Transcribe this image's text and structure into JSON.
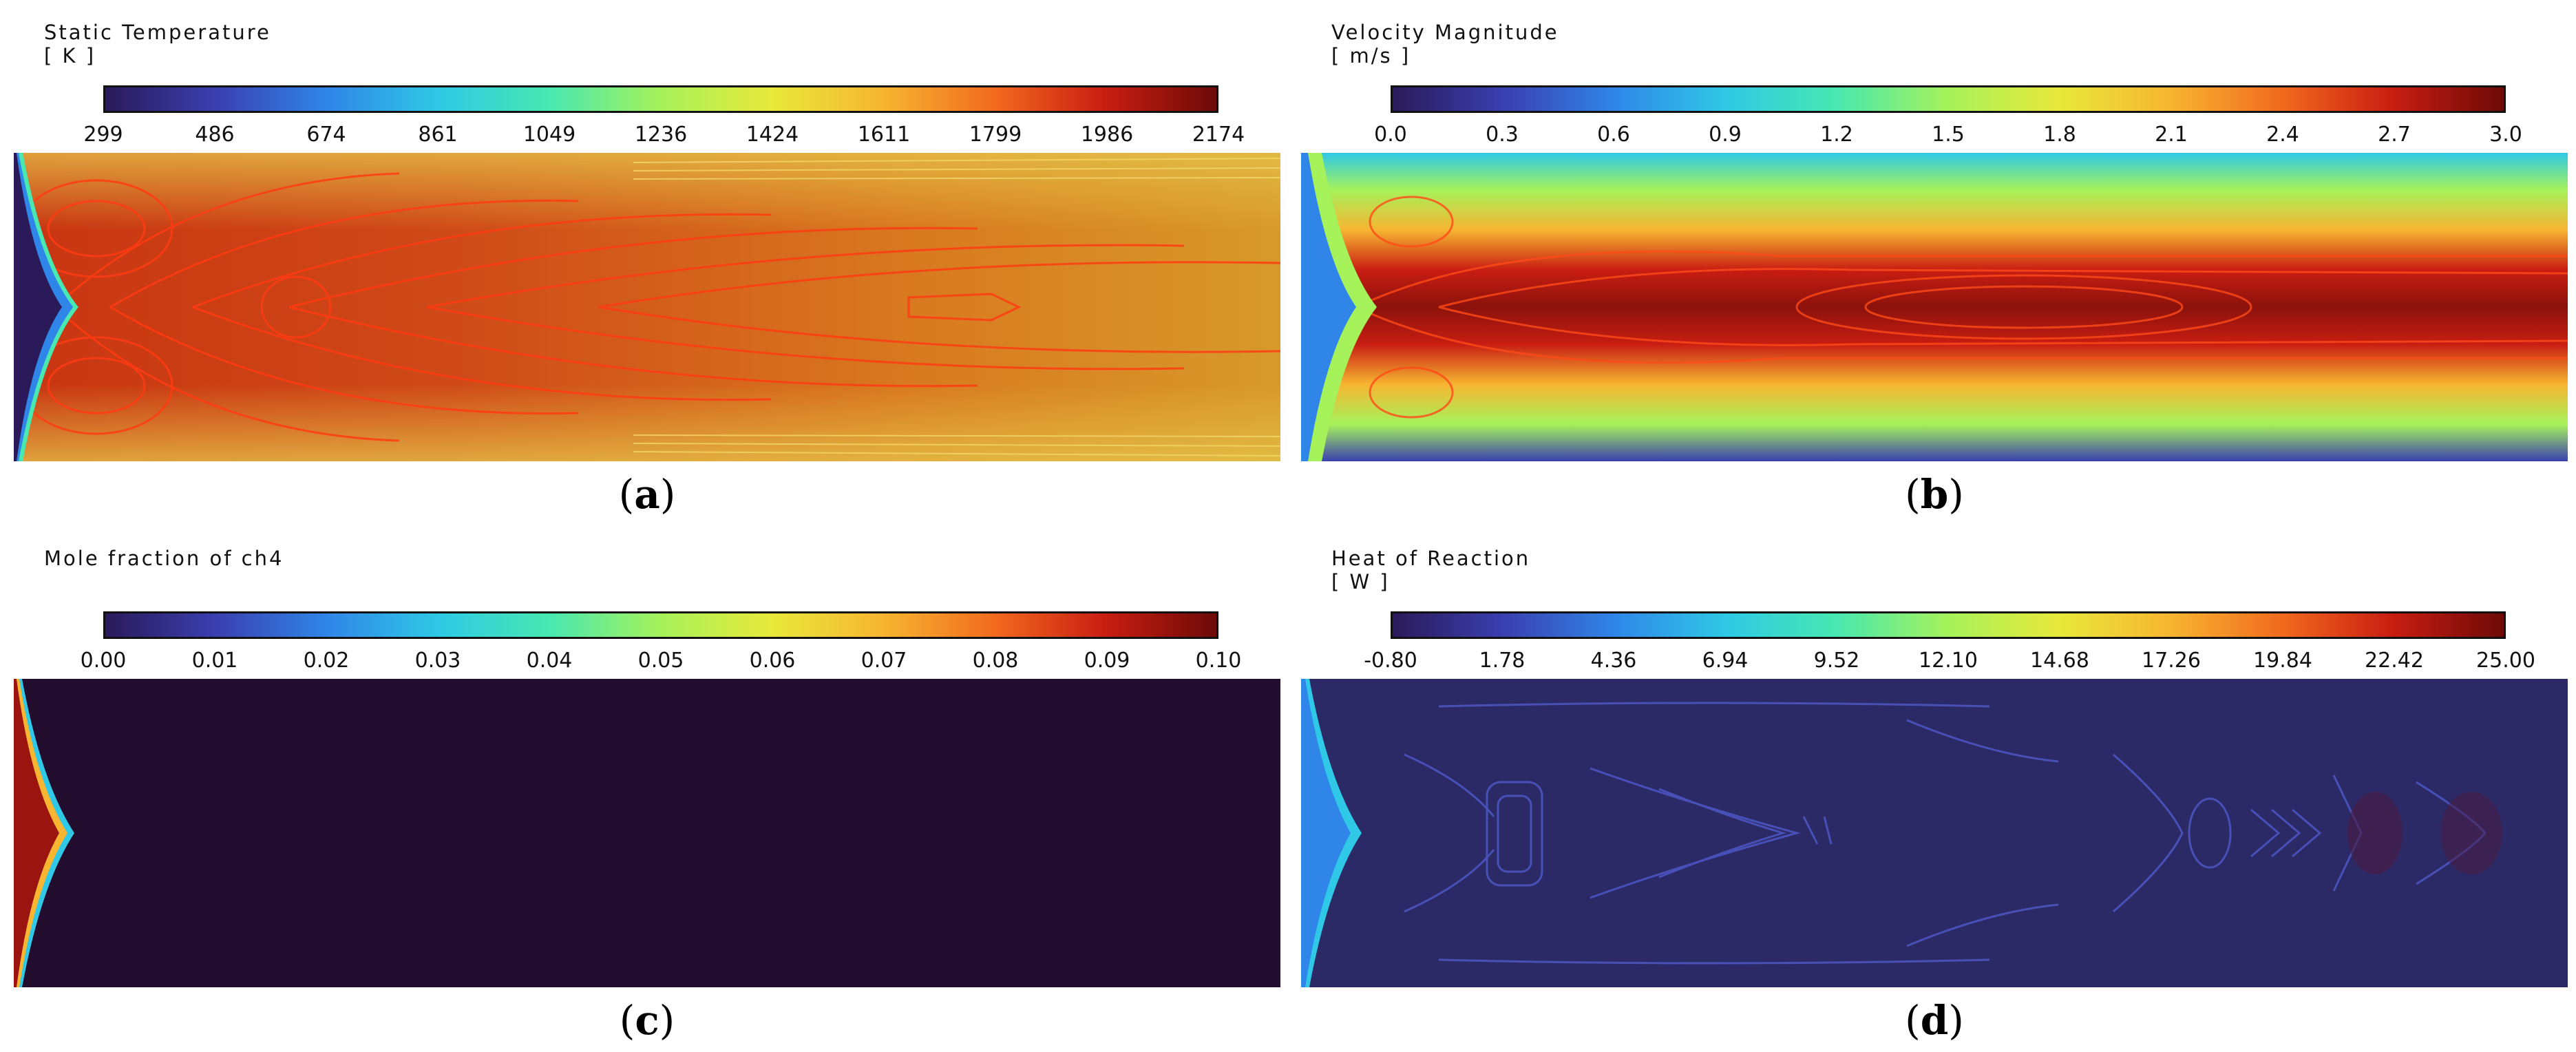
{
  "figure": {
    "panels": [
      {
        "id": "a",
        "label": "a",
        "title": "Static Temperature",
        "unit": "[ K ]",
        "ticks": [
          "299",
          "486",
          "674",
          "861",
          "1049",
          "1236",
          "1424",
          "1611",
          "1799",
          "1986",
          "2174"
        ]
      },
      {
        "id": "b",
        "label": "b",
        "title": "Velocity Magnitude",
        "unit": "[ m/s ]",
        "ticks": [
          "0.0",
          "0.3",
          "0.6",
          "0.9",
          "1.2",
          "1.5",
          "1.8",
          "2.1",
          "2.4",
          "2.7",
          "3.0"
        ]
      },
      {
        "id": "c",
        "label": "c",
        "title": "Mole fraction of ch4",
        "unit": "",
        "ticks": [
          "0.00",
          "0.01",
          "0.02",
          "0.03",
          "0.04",
          "0.05",
          "0.06",
          "0.07",
          "0.08",
          "0.09",
          "0.10"
        ]
      },
      {
        "id": "d",
        "label": "d",
        "title": "Heat of Reaction",
        "unit": "[ W ]",
        "ticks": [
          "-0.80",
          "1.78",
          "4.36",
          "6.94",
          "9.52",
          "12.10",
          "14.68",
          "17.26",
          "19.84",
          "22.42",
          "25.00"
        ]
      }
    ]
  },
  "chart_data": [
    {
      "type": "heatmap",
      "title": "Static Temperature",
      "unit": "[ K ]",
      "colormap": "jet",
      "range": [
        299,
        2174
      ],
      "ticks": [
        299,
        486,
        674,
        861,
        1049,
        1236,
        1424,
        1611,
        1799,
        1986,
        2174
      ],
      "label": "(a)"
    },
    {
      "type": "heatmap",
      "title": "Velocity Magnitude",
      "unit": "[ m/s ]",
      "colormap": "jet",
      "range": [
        0.0,
        3.0
      ],
      "ticks": [
        0.0,
        0.3,
        0.6,
        0.9,
        1.2,
        1.5,
        1.8,
        2.1,
        2.4,
        2.7,
        3.0
      ],
      "label": "(b)"
    },
    {
      "type": "heatmap",
      "title": "Mole fraction of ch4",
      "unit": "",
      "colormap": "jet",
      "range": [
        0.0,
        0.1
      ],
      "ticks": [
        0.0,
        0.01,
        0.02,
        0.03,
        0.04,
        0.05,
        0.06,
        0.07,
        0.08,
        0.09,
        0.1
      ],
      "label": "(c)"
    },
    {
      "type": "heatmap",
      "title": "Heat of Reaction",
      "unit": "[ W ]",
      "colormap": "jet",
      "range": [
        -0.8,
        25.0
      ],
      "ticks": [
        -0.8,
        1.78,
        4.36,
        6.94,
        9.52,
        12.1,
        14.68,
        17.26,
        19.84,
        22.42,
        25.0
      ],
      "label": "(d)"
    }
  ],
  "colors": {
    "jet": [
      "#2b1a5a",
      "#3a3fb0",
      "#2f86e8",
      "#2fc8e6",
      "#48e8b0",
      "#a6f25a",
      "#e8e83a",
      "#f7b531",
      "#f26a1e",
      "#c81d12",
      "#6e0a08"
    ],
    "domain_dark": "#230d2f"
  }
}
